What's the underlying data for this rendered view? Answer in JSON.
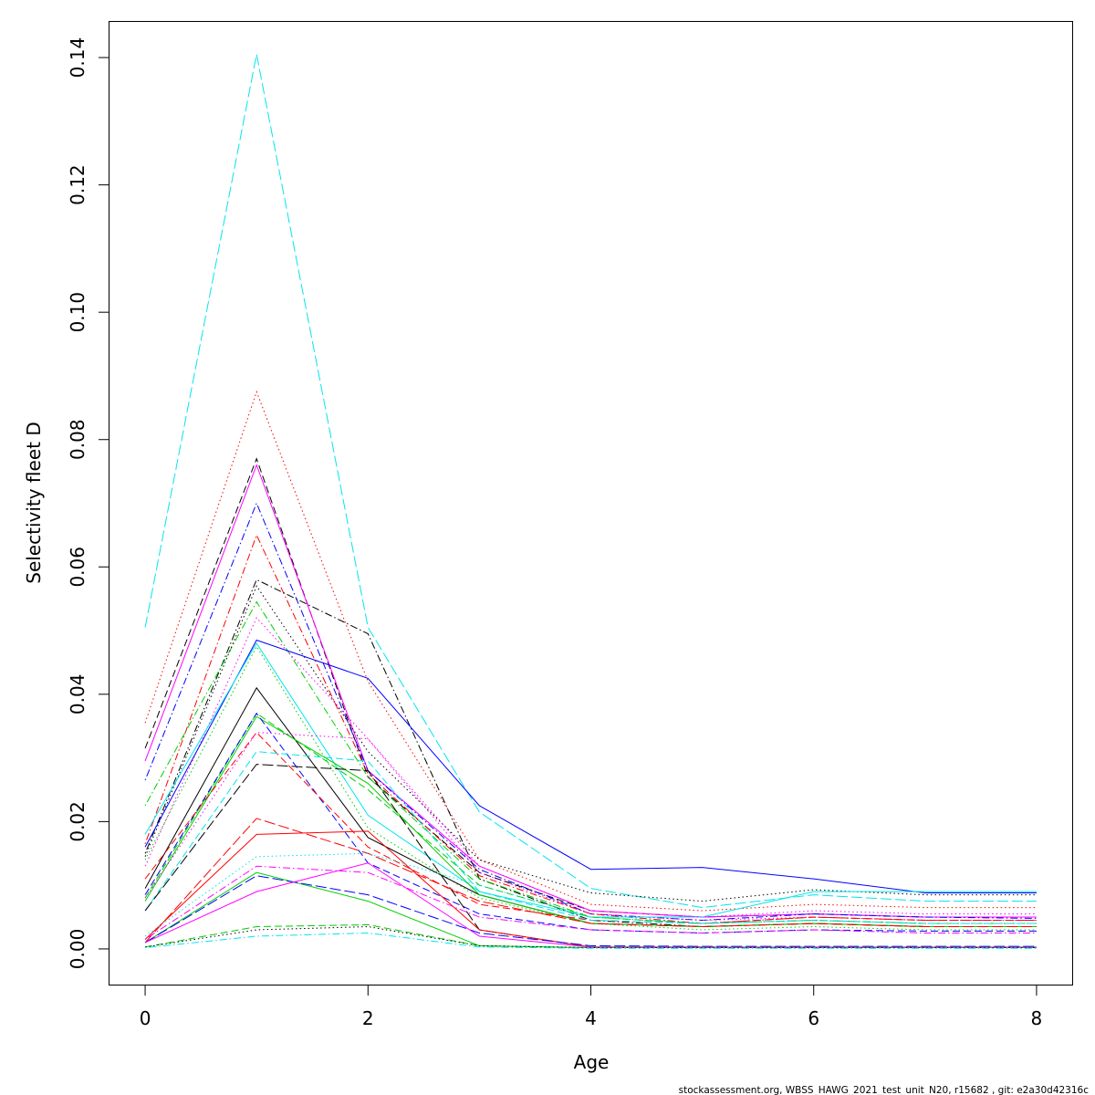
{
  "chart_data": {
    "type": "line",
    "xlabel": "Age",
    "ylabel": "Selectivity fleet D",
    "xlim": [
      -0.32,
      8.32
    ],
    "ylim": [
      -0.0056,
      0.1456
    ],
    "x": [
      0,
      1,
      2,
      3,
      4,
      5,
      6,
      7,
      8
    ],
    "x_ticks": [
      0,
      2,
      4,
      6,
      8
    ],
    "y_ticks": [
      0.0,
      0.02,
      0.04,
      0.06,
      0.08,
      0.1,
      0.12,
      0.14
    ],
    "y_tick_labels": [
      "0.00",
      "0.02",
      "0.04",
      "0.06",
      "0.08",
      "0.10",
      "0.12",
      "0.14"
    ],
    "grid": false,
    "legend": "none",
    "series": [
      {
        "values": [
          0.0505,
          0.1405,
          0.0505,
          0.0215,
          0.0095,
          0.0065,
          0.0085,
          0.0075,
          0.0075
        ],
        "color": "#00e5ee",
        "dash": "longdash"
      },
      {
        "values": [
          0.0355,
          0.0875,
          0.042,
          0.014,
          0.007,
          0.006,
          0.007,
          0.0065,
          0.0065
        ],
        "color": "#ff0000",
        "dash": "dotted"
      },
      {
        "values": [
          0.0315,
          0.077,
          0.027,
          0.012,
          0.006,
          0.005,
          0.0055,
          0.005,
          0.005
        ],
        "color": "#000000",
        "dash": "dashed"
      },
      {
        "values": [
          0.0295,
          0.076,
          0.028,
          0.013,
          0.006,
          0.005,
          0.0055,
          0.005,
          0.005
        ],
        "color": "#ff00ff",
        "dash": "solid"
      },
      {
        "values": [
          0.0265,
          0.07,
          0.028,
          0.0125,
          0.0055,
          0.0045,
          0.0055,
          0.005,
          0.0048
        ],
        "color": "#0000ff",
        "dash": "dotdash"
      },
      {
        "values": [
          0.0165,
          0.065,
          0.0275,
          0.0115,
          0.0055,
          0.004,
          0.005,
          0.0045,
          0.0045
        ],
        "color": "#ff0000",
        "dash": "dotdash"
      },
      {
        "values": [
          0.015,
          0.058,
          0.0495,
          0.011,
          0.0045,
          0.0035,
          0.004,
          0.0035,
          0.0035
        ],
        "color": "#000000",
        "dash": "dotdash"
      },
      {
        "values": [
          0.0225,
          0.0545,
          0.027,
          0.011,
          0.005,
          0.004,
          0.0045,
          0.004,
          0.004
        ],
        "color": "#00cd00",
        "dash": "dotdash"
      },
      {
        "values": [
          0.0145,
          0.057,
          0.031,
          0.014,
          0.0088,
          0.0075,
          0.0093,
          0.0085,
          0.0085
        ],
        "color": "#000000",
        "dash": "dotted"
      },
      {
        "values": [
          0.013,
          0.052,
          0.033,
          0.012,
          0.0055,
          0.0045,
          0.005,
          0.0045,
          0.0045
        ],
        "color": "#ff00ff",
        "dash": "dotted"
      },
      {
        "values": [
          0.016,
          0.0485,
          0.0425,
          0.0225,
          0.0125,
          0.0128,
          0.011,
          0.0088,
          0.0088
        ],
        "color": "#0000ff",
        "dash": "solid"
      },
      {
        "values": [
          0.018,
          0.048,
          0.021,
          0.009,
          0.005,
          0.005,
          0.009,
          0.009,
          0.009
        ],
        "color": "#00e5ee",
        "dash": "solid"
      },
      {
        "values": [
          0.014,
          0.0475,
          0.019,
          0.008,
          0.004,
          0.003,
          0.0035,
          0.003,
          0.003
        ],
        "color": "#00cd00",
        "dash": "dotted"
      },
      {
        "values": [
          0.008,
          0.037,
          0.025,
          0.01,
          0.005,
          0.004,
          0.0045,
          0.004,
          0.004
        ],
        "color": "#00cd00",
        "dash": "dashed"
      },
      {
        "values": [
          0.0095,
          0.041,
          0.0175,
          0.0085,
          0.004,
          0.0035,
          0.004,
          0.0035,
          0.0035
        ],
        "color": "#000000",
        "dash": "solid"
      },
      {
        "values": [
          0.0075,
          0.0365,
          0.026,
          0.0085,
          0.004,
          0.0035,
          0.004,
          0.0035,
          0.0035
        ],
        "color": "#00cd00",
        "dash": "solid"
      },
      {
        "values": [
          0.0085,
          0.037,
          0.0135,
          0.0055,
          0.003,
          0.0025,
          0.003,
          0.0028,
          0.0028
        ],
        "color": "#0000ff",
        "dash": "dashed"
      },
      {
        "values": [
          0.011,
          0.034,
          0.016,
          0.007,
          0.0045,
          0.004,
          0.005,
          0.0045,
          0.0045
        ],
        "color": "#ff0000",
        "dash": "dashed"
      },
      {
        "values": [
          0.008,
          0.034,
          0.033,
          0.013,
          0.006,
          0.005,
          0.006,
          0.0055,
          0.0055
        ],
        "color": "#ff00ff",
        "dash": "dotted"
      },
      {
        "values": [
          0.006,
          0.031,
          0.0295,
          0.009,
          0.0045,
          0.004,
          0.0045,
          0.004,
          0.004
        ],
        "color": "#00e5ee",
        "dash": "dashed"
      },
      {
        "values": [
          0.006,
          0.029,
          0.028,
          0.003,
          0.0003,
          0.0003,
          0.0002,
          0.0002,
          0.0002
        ],
        "color": "#000000",
        "dash": "longdash"
      },
      {
        "values": [
          0.001,
          0.0205,
          0.015,
          0.0075,
          0.004,
          0.0035,
          0.004,
          0.0035,
          0.0035
        ],
        "color": "#ff0000",
        "dash": "longdash"
      },
      {
        "values": [
          0.0015,
          0.018,
          0.0185,
          0.003,
          0.0003,
          0.0003,
          0.0002,
          0.0002,
          0.0002
        ],
        "color": "#ff0000",
        "dash": "solid"
      },
      {
        "values": [
          0.002,
          0.0145,
          0.015,
          0.01,
          0.005,
          0.004,
          0.0045,
          0.004,
          0.004
        ],
        "color": "#00e5ee",
        "dash": "dotted"
      },
      {
        "values": [
          0.0015,
          0.013,
          0.012,
          0.005,
          0.003,
          0.0025,
          0.003,
          0.0025,
          0.0025
        ],
        "color": "#ff00ff",
        "dash": "dotdash"
      },
      {
        "values": [
          0.001,
          0.012,
          0.0075,
          0.0005,
          0.0002,
          0.0002,
          0.0002,
          0.0002,
          0.0002
        ],
        "color": "#00cd00",
        "dash": "solid"
      },
      {
        "values": [
          0.001,
          0.0115,
          0.0085,
          0.0025,
          0.0005,
          0.0004,
          0.0004,
          0.0004,
          0.0004
        ],
        "color": "#0000ff",
        "dash": "longdash"
      },
      {
        "values": [
          0.001,
          0.009,
          0.0135,
          0.002,
          0.0003,
          0.0003,
          0.0003,
          0.0003,
          0.0003
        ],
        "color": "#ff00ff",
        "dash": "solid"
      },
      {
        "values": [
          0.0003,
          0.0035,
          0.0038,
          0.0005,
          0.0002,
          0.0002,
          0.0002,
          0.0002,
          0.0002
        ],
        "color": "#00cd00",
        "dash": "dashed"
      },
      {
        "values": [
          0.0003,
          0.003,
          0.0035,
          0.0005,
          0.0002,
          0.0002,
          0.0002,
          0.0002,
          0.0002
        ],
        "color": "#000000",
        "dash": "dotted"
      },
      {
        "values": [
          0.0002,
          0.002,
          0.0025,
          0.0003,
          0.0001,
          0.0001,
          0.0001,
          0.0001,
          0.0001
        ],
        "color": "#00e5ee",
        "dash": "dotdash"
      }
    ]
  },
  "footer": {
    "text": "stockassessment.org, WBSS_HAWG_2021_test_unit_N20, r15682 , git: e2a30d42316c"
  }
}
